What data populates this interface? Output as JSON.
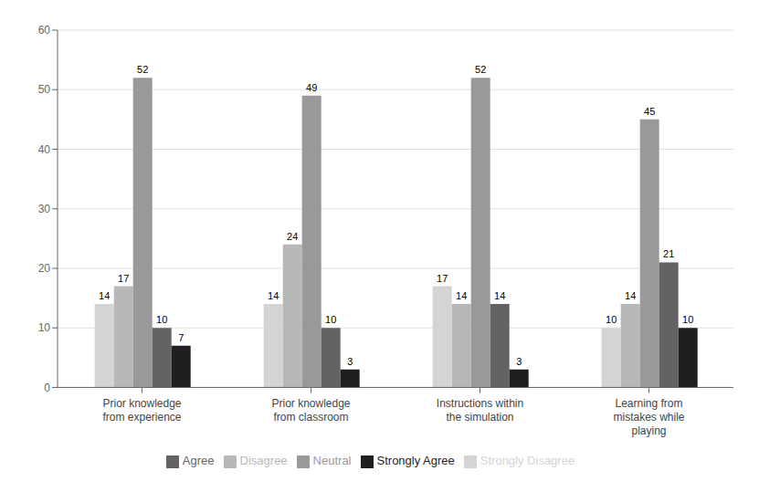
{
  "chart_data": {
    "type": "bar",
    "categories": [
      "Prior knowledge\nfrom experience",
      "Prior knowledge\nfrom classroom",
      "Instructions within\nthe simulation",
      "Learning from\nmistakes while\nplaying"
    ],
    "series": [
      {
        "name": "Strongly Disagree",
        "color": "#d4d4d4",
        "values": [
          14,
          14,
          17,
          10
        ]
      },
      {
        "name": "Disagree",
        "color": "#b8b8b8",
        "values": [
          17,
          24,
          14,
          14
        ]
      },
      {
        "name": "Neutral",
        "color": "#999999",
        "values": [
          52,
          49,
          52,
          45
        ]
      },
      {
        "name": "Agree",
        "color": "#636363",
        "values": [
          10,
          10,
          14,
          21
        ]
      },
      {
        "name": "Strongly Agree",
        "color": "#1f1f1f",
        "values": [
          7,
          3,
          3,
          10
        ]
      }
    ],
    "ylim": [
      0,
      60
    ],
    "yticks": [
      0,
      10,
      20,
      30,
      40,
      50,
      60
    ],
    "grid": true,
    "legend": "bottom",
    "data_labels": true
  }
}
